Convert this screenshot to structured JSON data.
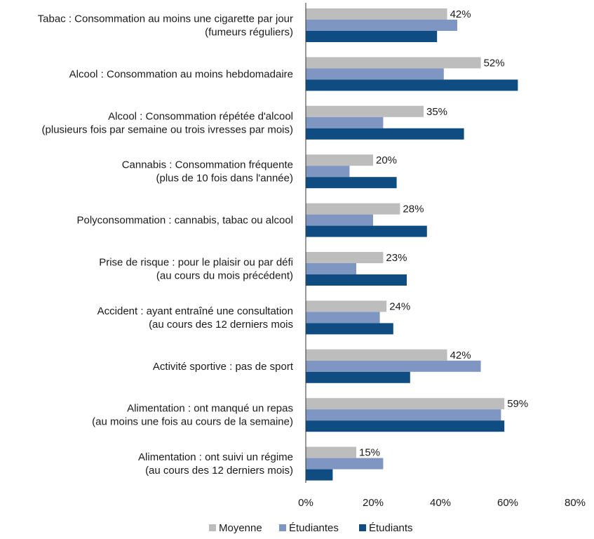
{
  "chart_data": {
    "type": "bar",
    "orientation": "horizontal",
    "categories": [
      [
        "Tabac : Consommation au moins une cigarette par jour",
        "(fumeurs réguliers)"
      ],
      [
        "Alcool : Consommation au moins hebdomadaire"
      ],
      [
        "Alcool : Consommation répétée d'alcool",
        "(plusieurs fois par semaine ou trois ivresses par mois)"
      ],
      [
        "Cannabis : Consommation fréquente",
        "(plus de 10 fois dans l'année)"
      ],
      [
        "Polyconsommation : cannabis, tabac ou alcool"
      ],
      [
        "Prise de risque : pour le plaisir ou par défi",
        "(au cours du mois précédent)"
      ],
      [
        "Accident : ayant entraîné une consultation",
        "(au cours des 12 derniers mois"
      ],
      [
        "Activité sportive : pas de sport"
      ],
      [
        "Alimentation : ont manqué un repas",
        "(au moins une fois au cours de la semaine)"
      ],
      [
        "Alimentation : ont suivi un régime",
        "(au cours des 12 derniers mois)"
      ]
    ],
    "series": [
      {
        "name": "Moyenne",
        "color": "#bdbdbd",
        "values": [
          42,
          52,
          35,
          20,
          28,
          23,
          24,
          42,
          59,
          15
        ]
      },
      {
        "name": "Étudiantes",
        "color": "#7f96c3",
        "values": [
          45,
          41,
          23,
          13,
          20,
          15,
          22,
          52,
          58,
          23
        ]
      },
      {
        "name": "Étudiants",
        "color": "#0f4c81",
        "values": [
          39,
          63,
          47,
          27,
          36,
          30,
          26,
          31,
          59,
          8
        ]
      }
    ],
    "data_labels": [
      "42%",
      "52%",
      "35%",
      "20%",
      "28%",
      "23%",
      "24%",
      "42%",
      "59%",
      "15%"
    ],
    "x_ticks": [
      "0%",
      "20%",
      "40%",
      "60%",
      "80%"
    ],
    "xlim": [
      0,
      80
    ],
    "grid": false,
    "legend_position": "bottom"
  }
}
